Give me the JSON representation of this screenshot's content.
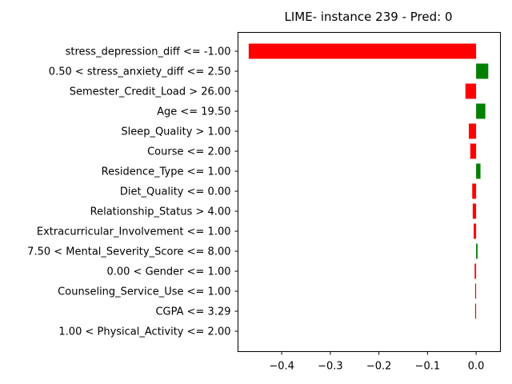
{
  "chart_data": {
    "type": "bar",
    "orientation": "horizontal",
    "title": "LIME- instance 239 - Pred: 0",
    "xlabel": "",
    "ylabel": "",
    "xlim": [
      -0.49,
      0.05
    ],
    "xticks": [
      -0.4,
      -0.3,
      -0.2,
      -0.1,
      0.0
    ],
    "xtick_labels": [
      "−0.4",
      "−0.3",
      "−0.2",
      "−0.1",
      "0.0"
    ],
    "grid": false,
    "categories": [
      "stress_depression_diff <= -1.00",
      "0.50 < stress_anxiety_diff <= 2.50",
      "Semester_Credit_Load > 26.00",
      "Age <= 19.50",
      "Sleep_Quality > 1.00",
      "Course <= 2.00",
      "Residence_Type <= 1.00",
      "Diet_Quality <= 0.00",
      "Relationship_Status > 4.00",
      "Extracurricular_Involvement <= 1.00",
      "7.50 < Mental_Severity_Score <= 8.00",
      "0.00 < Gender <= 1.00",
      "Counseling_Service_Use <= 1.00",
      "CGPA <= 3.29",
      "1.00 < Physical_Activity <= 2.00"
    ],
    "values": [
      -0.468,
      0.025,
      -0.022,
      0.019,
      -0.015,
      -0.012,
      0.009,
      -0.008,
      -0.007,
      -0.005,
      0.003,
      -0.003,
      -0.002,
      -0.002,
      0.0
    ],
    "colors": {
      "positive": "#008000",
      "negative": "#ff0000"
    }
  }
}
